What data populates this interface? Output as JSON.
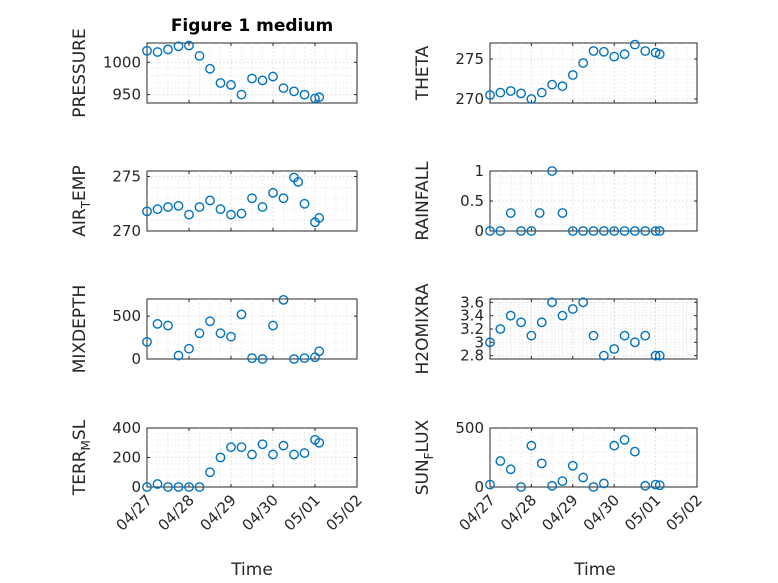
{
  "chart_data": [
    {
      "id": "pressure",
      "type": "scatter",
      "title": "Figure 1 medium",
      "ylabel": "PRESSURE",
      "xlim": [
        0,
        5
      ],
      "ylim": [
        937,
        1030
      ],
      "yticks": [
        950,
        1000
      ],
      "x": [
        0,
        0.25,
        0.5,
        0.75,
        1,
        1.25,
        1.5,
        1.75,
        2,
        2.25,
        2.5,
        2.75,
        3,
        3.25,
        3.5,
        3.75,
        4,
        4.1
      ],
      "y": [
        1018,
        1016,
        1020,
        1025,
        1026,
        1010,
        990,
        968,
        965,
        950,
        975,
        972,
        978,
        960,
        955,
        950,
        944,
        946
      ]
    },
    {
      "id": "theta",
      "type": "scatter",
      "ylabel": "THETA",
      "xlim": [
        0,
        5
      ],
      "ylim": [
        269.5,
        277
      ],
      "yticks": [
        270,
        275
      ],
      "x": [
        0,
        0.25,
        0.5,
        0.75,
        1,
        1.25,
        1.5,
        1.75,
        2,
        2.25,
        2.5,
        2.75,
        3,
        3.25,
        3.5,
        3.75,
        4,
        4.1
      ],
      "y": [
        270.5,
        270.8,
        271,
        270.7,
        270,
        270.8,
        271.8,
        271.6,
        273,
        274.5,
        276,
        275.9,
        275.3,
        275.6,
        276.8,
        276,
        275.8,
        275.6
      ]
    },
    {
      "id": "air-temp",
      "type": "scatter",
      "ylabel": "AIR_TEMP",
      "xlim": [
        0,
        5
      ],
      "ylim": [
        270,
        275.5
      ],
      "yticks": [
        270,
        275
      ],
      "x": [
        0,
        0.25,
        0.5,
        0.75,
        1,
        1.25,
        1.5,
        1.75,
        2,
        2.25,
        2.5,
        2.75,
        3,
        3.25,
        3.5,
        3.6,
        3.75,
        4,
        4.1
      ],
      "y": [
        271.8,
        272,
        272.2,
        272.3,
        271.5,
        272.2,
        272.8,
        272,
        271.5,
        271.6,
        273,
        272.2,
        273.5,
        273,
        274.9,
        274.5,
        272.5,
        270.8,
        271.2
      ]
    },
    {
      "id": "rainfall",
      "type": "scatter",
      "ylabel": "RAINFALL",
      "xlim": [
        0,
        5
      ],
      "ylim": [
        0,
        1
      ],
      "yticks": [
        0,
        0.5,
        1
      ],
      "x": [
        0,
        0.25,
        0.5,
        0.75,
        1,
        1.2,
        1.5,
        1.75,
        2,
        2.25,
        2.5,
        2.75,
        3,
        3.25,
        3.5,
        3.75,
        4,
        4.1
      ],
      "y": [
        0,
        0,
        0.3,
        0,
        0,
        0.3,
        1,
        0.3,
        0,
        0,
        0,
        0,
        0,
        0,
        0,
        0,
        0,
        0
      ]
    },
    {
      "id": "mixdepth",
      "type": "scatter",
      "ylabel": "MIXDEPTH",
      "xlim": [
        0,
        5
      ],
      "ylim": [
        0,
        700
      ],
      "yticks": [
        0,
        500
      ],
      "x": [
        0,
        0.25,
        0.5,
        0.75,
        1,
        1.25,
        1.5,
        1.75,
        2,
        2.25,
        2.5,
        2.75,
        3,
        3.25,
        3.5,
        3.75,
        4,
        4.1
      ],
      "y": [
        200,
        410,
        390,
        40,
        120,
        300,
        440,
        300,
        260,
        520,
        10,
        0,
        390,
        690,
        0,
        10,
        20,
        90
      ]
    },
    {
      "id": "h2omixra",
      "type": "scatter",
      "ylabel": "H2OMIXRA",
      "xlim": [
        0,
        5
      ],
      "ylim": [
        2.75,
        3.65
      ],
      "yticks": [
        2.8,
        3,
        3.2,
        3.4,
        3.6
      ],
      "x": [
        0,
        0.25,
        0.5,
        0.75,
        1,
        1.25,
        1.5,
        1.75,
        2,
        2.25,
        2.5,
        2.75,
        3,
        3.25,
        3.5,
        3.75,
        4,
        4.1
      ],
      "y": [
        3,
        3.2,
        3.4,
        3.3,
        3.1,
        3.3,
        3.6,
        3.4,
        3.5,
        3.6,
        3.1,
        2.8,
        2.9,
        3.1,
        3.0,
        3.1,
        2.8,
        2.8
      ]
    },
    {
      "id": "terrain",
      "type": "scatter",
      "ylabel": "TERR_MSL",
      "xlim": [
        0,
        5
      ],
      "ylim": [
        0,
        400
      ],
      "yticks": [
        0,
        200,
        400
      ],
      "x": [
        0,
        0.25,
        0.5,
        0.75,
        1,
        1.25,
        1.5,
        1.75,
        2,
        2.25,
        2.5,
        2.75,
        3,
        3.25,
        3.5,
        3.75,
        4,
        4.1
      ],
      "y": [
        0,
        20,
        0,
        0,
        0,
        0,
        100,
        200,
        270,
        270,
        220,
        290,
        220,
        280,
        220,
        230,
        320,
        300
      ]
    },
    {
      "id": "sunflux",
      "type": "scatter",
      "ylabel": "SUN_FLUX",
      "xlim": [
        0,
        5
      ],
      "ylim": [
        0,
        500
      ],
      "yticks": [
        0,
        500
      ],
      "x": [
        0,
        0.25,
        0.5,
        0.75,
        1,
        1.25,
        1.5,
        1.75,
        2,
        2.25,
        2.5,
        2.75,
        3,
        3.25,
        3.5,
        3.75,
        4,
        4.1
      ],
      "y": [
        20,
        220,
        150,
        0,
        350,
        200,
        10,
        50,
        180,
        80,
        0,
        30,
        350,
        400,
        300,
        10,
        20,
        15
      ]
    }
  ],
  "x_tick_labels": [
    "04/27",
    "04/28",
    "04/29",
    "04/30",
    "05/01",
    "05/02"
  ],
  "xlabel": "Time",
  "colors": {
    "marker": "#0072BD",
    "axis": "#262626",
    "grid": "#d9d9d9"
  }
}
